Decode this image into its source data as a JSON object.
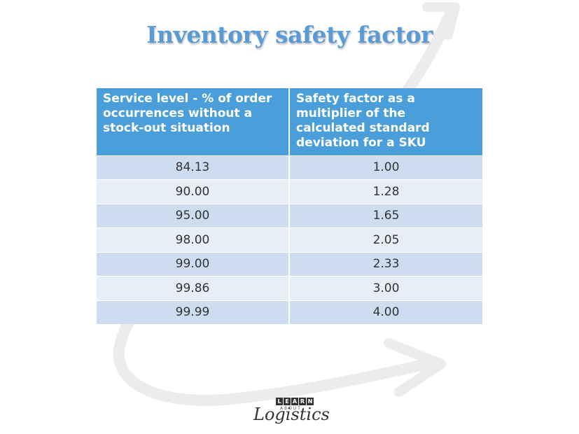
{
  "title": "Inventory safety factor",
  "table": {
    "headers": [
      "Service level -  % of order occurrences without a stock-out situation",
      "Safety factor as a multiplier of the calculated standard deviation for a SKU"
    ],
    "rows": [
      {
        "service_level": "84.13",
        "safety_factor": "1.00"
      },
      {
        "service_level": "90.00",
        "safety_factor": "1.28"
      },
      {
        "service_level": "95.00",
        "safety_factor": "1.65"
      },
      {
        "service_level": "98.00",
        "safety_factor": "2.05"
      },
      {
        "service_level": "99.00",
        "safety_factor": "2.33"
      },
      {
        "service_level": "99.86",
        "safety_factor": "3.00"
      },
      {
        "service_level": "99.99",
        "safety_factor": "4.00"
      }
    ]
  },
  "colors": {
    "title": "#5b9bd5",
    "header_bg": "#4a9ed9",
    "row_dark": "#cddcee",
    "row_light": "#e8eef7"
  },
  "logo": {
    "letters": [
      "L",
      "E",
      "A",
      "R",
      "N"
    ],
    "about": "ABOUT",
    "script": "Logistics"
  }
}
